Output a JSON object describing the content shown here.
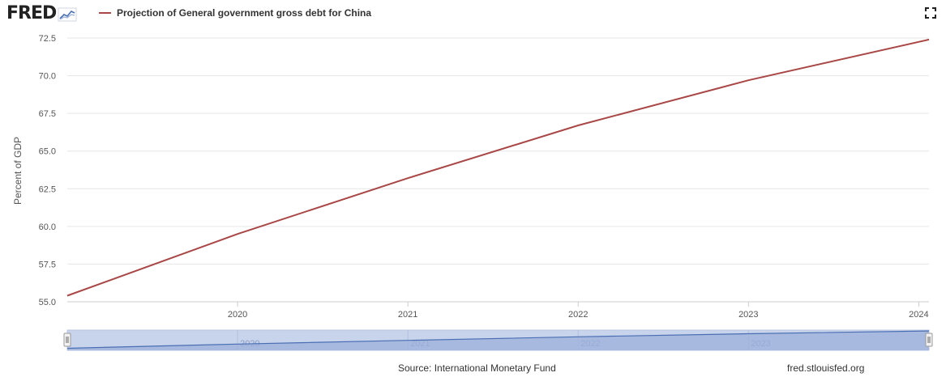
{
  "header": {
    "logo_text": "FRED",
    "legend_label": "Projection of General government gross debt for China",
    "fullscreen_icon": "fullscreen-icon"
  },
  "colors": {
    "series": "#a84745",
    "grid": "#e6e6e6",
    "navigator_fill": "#9cb0d9",
    "navigator_line": "#4a6fb3",
    "navigator_mask": "#c8d3ec"
  },
  "chart_data": {
    "type": "line",
    "title": "",
    "ylabel": "Percent of GDP",
    "xlabel": "",
    "ylim": [
      55.0,
      72.5
    ],
    "yticks": [
      "55.0",
      "57.5",
      "60.0",
      "62.5",
      "65.0",
      "67.5",
      "70.0",
      "72.5"
    ],
    "ytick_values": [
      55.0,
      57.5,
      60.0,
      62.5,
      65.0,
      67.5,
      70.0,
      72.5
    ],
    "xticks": [
      "2020",
      "2021",
      "2022",
      "2023",
      "2024"
    ],
    "xtick_values": [
      2020,
      2021,
      2022,
      2023,
      2024
    ],
    "xlim": [
      2019.0,
      2024.06
    ],
    "grid": true,
    "series": [
      {
        "name": "Projection of General government gross debt for China",
        "x": [
          2019.0,
          2020.0,
          2021.0,
          2022.0,
          2023.0,
          2024.06
        ],
        "y": [
          55.4,
          59.5,
          63.2,
          66.7,
          69.7,
          72.4
        ]
      }
    ],
    "navigator_xticks": [
      "2020",
      "2021",
      "2022",
      "2023"
    ]
  },
  "footer": {
    "source": "Source: International Monetary Fund",
    "site": "fred.stlouisfed.org"
  }
}
